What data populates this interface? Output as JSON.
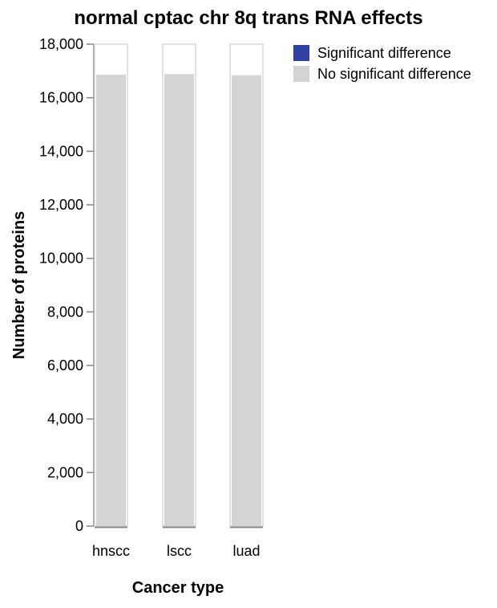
{
  "chart_data": {
    "type": "bar",
    "title": "normal cptac chr 8q trans RNA effects",
    "xlabel": "Cancer type",
    "ylabel": "Number of proteins",
    "categories": [
      "hnscc",
      "lscc",
      "luad"
    ],
    "series": [
      {
        "name": "Significant difference",
        "color": "#3340a3",
        "values": [
          0,
          0,
          0
        ]
      },
      {
        "name": "No significant difference",
        "color": "#d4d4d4",
        "values": [
          16860,
          16880,
          16840
        ]
      }
    ],
    "ylim": [
      0,
      18000
    ],
    "yticks": [
      0,
      2000,
      4000,
      6000,
      8000,
      10000,
      12000,
      14000,
      16000,
      18000
    ],
    "ytick_labels": [
      "0",
      "2,000",
      "4,000",
      "6,000",
      "8,000",
      "10,000",
      "12,000",
      "14,000",
      "16,000",
      "18,000"
    ],
    "stacked": true,
    "grid": false,
    "legend_position": "top-right",
    "panel_outline_color": "#d9d9d9",
    "axis_color": "#888888"
  }
}
